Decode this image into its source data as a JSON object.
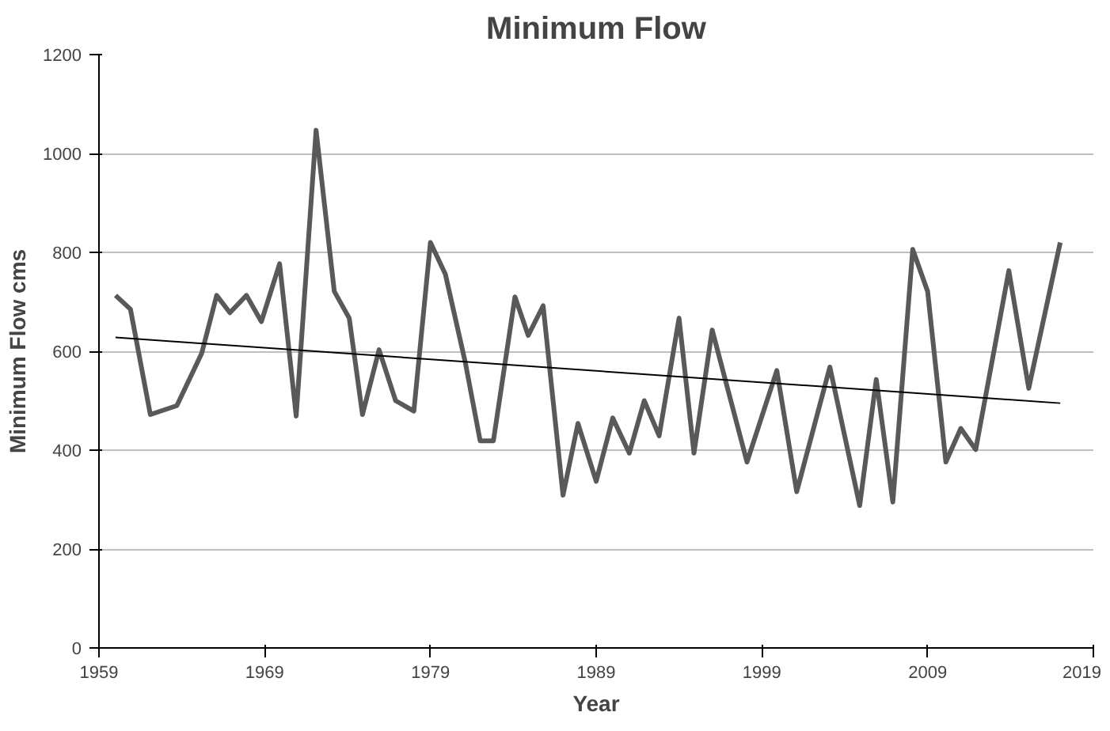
{
  "chart_data": {
    "type": "line",
    "title": "Minimum Flow",
    "xlabel": "Year",
    "ylabel": "Minimum Flow cms",
    "xlim": [
      1959,
      2019
    ],
    "xticks": [
      1959,
      1969,
      1979,
      1989,
      1999,
      2009,
      2019
    ],
    "ylim": [
      0,
      1200
    ],
    "yticks": [
      0,
      200,
      400,
      600,
      800,
      1000,
      1200
    ],
    "grid": "y",
    "marker": "none",
    "line_style": "solid",
    "series": [
      {
        "color": "#595959",
        "x": [
          1960.0,
          1960.9,
          1962.1,
          1963.7,
          1965.2,
          1966.1,
          1966.9,
          1967.9,
          1968.8,
          1969.9,
          1970.9,
          1972.1,
          1973.2,
          1974.1,
          1974.9,
          1975.9,
          1976.9,
          1978.0,
          1979.0,
          1979.9,
          1981.1,
          1982.0,
          1982.8,
          1984.1,
          1984.9,
          1985.8,
          1987.0,
          1987.9,
          1989.0,
          1990.0,
          1991.0,
          1991.9,
          1992.8,
          1994.0,
          1994.9,
          1996.0,
          1998.1,
          1999.9,
          2001.1,
          2003.1,
          2004.9,
          2005.9,
          2006.9,
          2008.1,
          2009.0,
          2010.1,
          2011.0,
          2011.9,
          2013.9,
          2015.1,
          2017.0
        ],
        "values": [
          713,
          685,
          472,
          490,
          596,
          713,
          678,
          713,
          660,
          777,
          469,
          1047,
          721,
          667,
          472,
          603,
          500,
          479,
          820,
          756,
          578,
          419,
          419,
          710,
          632,
          692,
          309,
          454,
          337,
          465,
          394,
          500,
          429,
          667,
          394,
          643,
          376,
          561,
          316,
          568,
          288,
          543,
          295,
          806,
          721,
          376,
          444,
          401,
          763,
          525,
          820
        ]
      },
      {
        "type": "line",
        "color": "#000000",
        "x": [
          1960,
          2017
        ],
        "values": [
          628,
          495
        ]
      }
    ]
  }
}
